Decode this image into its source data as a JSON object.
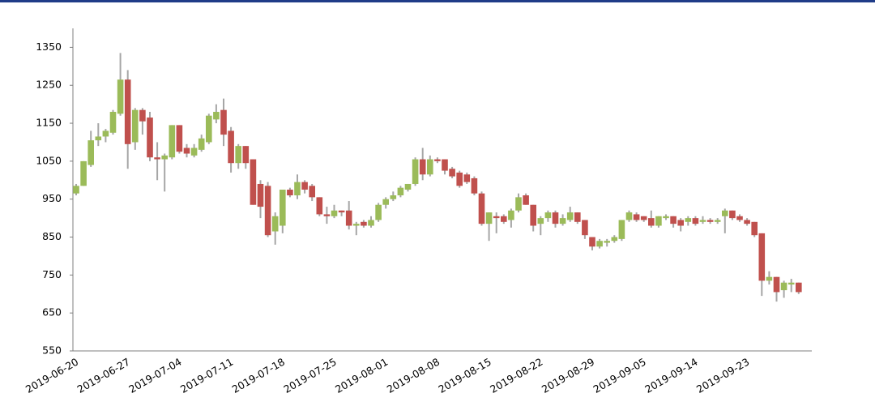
{
  "chart_data": {
    "type": "candlestick",
    "categories": [
      "2019-06-20",
      null,
      null,
      null,
      null,
      null,
      null,
      "2019-06-27",
      null,
      null,
      null,
      null,
      null,
      null,
      "2019-07-04",
      null,
      null,
      null,
      null,
      null,
      null,
      "2019-07-11",
      null,
      null,
      null,
      null,
      null,
      null,
      "2019-07-18",
      null,
      null,
      null,
      null,
      null,
      null,
      "2019-07-25",
      null,
      null,
      null,
      null,
      null,
      null,
      "2019-08-01",
      null,
      null,
      null,
      null,
      null,
      null,
      "2019-08-08",
      null,
      null,
      null,
      null,
      null,
      null,
      "2019-08-15",
      null,
      null,
      null,
      null,
      null,
      null,
      "2019-08-22",
      null,
      null,
      null,
      null,
      null,
      null,
      "2019-08-29",
      null,
      null,
      null,
      null,
      null,
      null,
      "2019-09-05",
      null,
      null,
      null,
      null,
      null,
      null,
      "2019-09-14",
      null,
      null,
      null,
      null,
      null,
      null,
      "2019-09-23",
      null,
      null,
      null,
      null,
      null,
      null,
      null
    ],
    "open": [
      965,
      985,
      1040,
      1105,
      1115,
      1125,
      1175,
      1265,
      1100,
      1185,
      1165,
      1060,
      1055,
      1060,
      1145,
      1085,
      1065,
      1080,
      1100,
      1160,
      1185,
      1130,
      1045,
      1090,
      1055,
      990,
      985,
      865,
      880,
      975,
      960,
      995,
      985,
      955,
      910,
      905,
      920,
      920,
      880,
      890,
      880,
      895,
      935,
      950,
      960,
      975,
      990,
      1055,
      1015,
      1055,
      1055,
      1030,
      1020,
      1015,
      1005,
      965,
      885,
      905,
      905,
      895,
      920,
      960,
      935,
      885,
      900,
      915,
      885,
      895,
      915,
      895,
      850,
      825,
      835,
      840,
      845,
      895,
      910,
      905,
      900,
      880,
      900,
      905,
      895,
      890,
      900,
      890,
      895,
      890,
      905,
      920,
      905,
      895,
      890,
      860,
      735,
      745,
      710,
      725,
      730
    ],
    "high": [
      990,
      1050,
      1130,
      1150,
      1135,
      1185,
      1335,
      1290,
      1190,
      1190,
      1180,
      1100,
      1070,
      1145,
      1145,
      1095,
      1095,
      1120,
      1175,
      1200,
      1215,
      1140,
      1095,
      1090,
      1055,
      1000,
      995,
      915,
      975,
      980,
      1015,
      1000,
      990,
      955,
      930,
      935,
      920,
      945,
      890,
      895,
      905,
      940,
      955,
      970,
      985,
      990,
      1060,
      1085,
      1065,
      1060,
      1055,
      1035,
      1025,
      1020,
      1010,
      970,
      915,
      915,
      910,
      925,
      965,
      965,
      935,
      905,
      920,
      920,
      910,
      930,
      915,
      895,
      850,
      845,
      845,
      855,
      895,
      920,
      915,
      905,
      920,
      905,
      910,
      905,
      900,
      905,
      905,
      905,
      900,
      900,
      925,
      920,
      910,
      900,
      890,
      860,
      760,
      745,
      735,
      740,
      730
    ],
    "low": [
      960,
      985,
      1035,
      1090,
      1100,
      1120,
      1170,
      1030,
      1080,
      1120,
      1050,
      1000,
      970,
      1055,
      1070,
      1060,
      1060,
      1075,
      1095,
      1150,
      1090,
      1020,
      1030,
      1030,
      935,
      900,
      850,
      830,
      860,
      955,
      950,
      965,
      945,
      905,
      885,
      900,
      905,
      870,
      855,
      875,
      875,
      890,
      925,
      945,
      955,
      970,
      985,
      1000,
      1010,
      1045,
      1015,
      1005,
      980,
      990,
      960,
      880,
      840,
      860,
      885,
      875,
      915,
      935,
      865,
      855,
      890,
      875,
      880,
      890,
      885,
      845,
      815,
      820,
      825,
      835,
      840,
      890,
      890,
      890,
      875,
      875,
      895,
      875,
      865,
      880,
      880,
      885,
      885,
      885,
      860,
      895,
      890,
      880,
      850,
      695,
      725,
      680,
      690,
      705,
      700
    ],
    "close": [
      985,
      1050,
      1105,
      1115,
      1130,
      1180,
      1265,
      1095,
      1185,
      1155,
      1060,
      1055,
      1065,
      1145,
      1075,
      1070,
      1085,
      1110,
      1170,
      1180,
      1120,
      1045,
      1090,
      1045,
      935,
      930,
      855,
      905,
      975,
      960,
      995,
      975,
      955,
      910,
      905,
      920,
      915,
      880,
      885,
      880,
      895,
      935,
      950,
      960,
      980,
      990,
      1055,
      1015,
      1055,
      1050,
      1025,
      1010,
      985,
      995,
      965,
      885,
      915,
      900,
      890,
      920,
      955,
      935,
      880,
      900,
      915,
      885,
      900,
      915,
      890,
      855,
      825,
      840,
      840,
      850,
      895,
      915,
      895,
      895,
      880,
      905,
      905,
      885,
      880,
      900,
      885,
      895,
      890,
      895,
      920,
      900,
      895,
      885,
      855,
      735,
      745,
      705,
      730,
      730,
      705
    ],
    "up_color": "#9bbb59",
    "down_color": "#c0504d",
    "wick_color": "#a6a6a6",
    "ylim": [
      550,
      1400
    ],
    "yticks": [
      550,
      650,
      750,
      850,
      950,
      1050,
      1150,
      1250,
      1350
    ]
  }
}
